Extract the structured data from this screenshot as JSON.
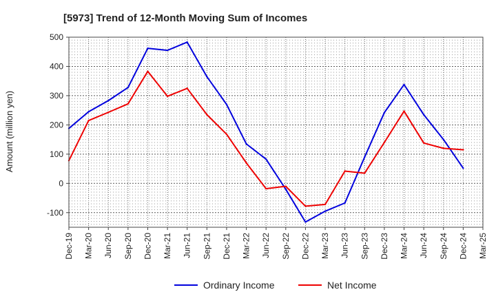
{
  "chart_data": {
    "type": "line",
    "title": "[5973]  Trend of 12-Month Moving Sum of Incomes",
    "xlabel": "",
    "ylabel": "Amount (million yen)",
    "ylim": [
      -150,
      500
    ],
    "yticks": [
      500,
      400,
      300,
      200,
      100,
      0,
      -100
    ],
    "grid": true,
    "legend_position": "bottom",
    "categories": [
      "Dec-19",
      "Mar-20",
      "Jun-20",
      "Sep-20",
      "Dec-20",
      "Mar-21",
      "Jun-21",
      "Sep-21",
      "Dec-21",
      "Mar-22",
      "Jun-22",
      "Sep-22",
      "Dec-22",
      "Mar-23",
      "Jun-23",
      "Sep-23",
      "Dec-23",
      "Mar-24",
      "Jun-24",
      "Sep-24",
      "Dec-24",
      "Mar-25"
    ],
    "series": [
      {
        "name": "Ordinary Income",
        "color": "#0000dd",
        "values": [
          188,
          245,
          283,
          328,
          462,
          455,
          483,
          365,
          270,
          135,
          83,
          -20,
          -132,
          -95,
          -67,
          90,
          242,
          338,
          235,
          150,
          52,
          null
        ]
      },
      {
        "name": "Net Income",
        "color": "#ee0000",
        "values": [
          78,
          215,
          243,
          272,
          383,
          298,
          325,
          235,
          168,
          70,
          -18,
          -10,
          -78,
          -72,
          42,
          35,
          140,
          247,
          138,
          120,
          115,
          null
        ]
      }
    ]
  }
}
